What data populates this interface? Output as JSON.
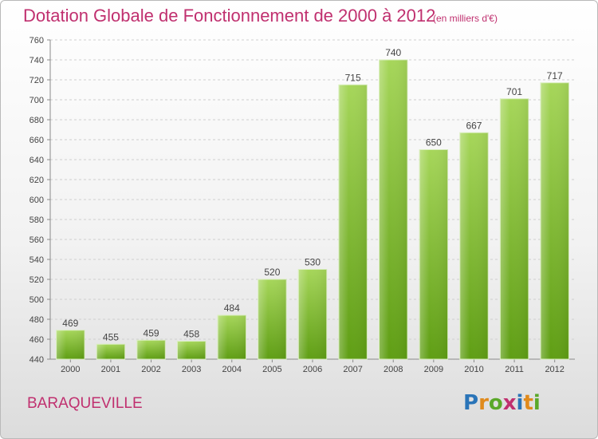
{
  "header": {
    "title": "Dotation Globale de Fonctionnement de 2000 à 2012",
    "subtitle": "(en milliers d'€)"
  },
  "footer": {
    "place": "BARAQUEVILLE",
    "logo": "Proxiti"
  },
  "colors": {
    "bar_light": "#a6d65a",
    "bar_dark": "#5f9e14",
    "title": "#c0306f"
  },
  "chart_data": {
    "type": "bar",
    "categories": [
      "2000",
      "2001",
      "2002",
      "2003",
      "2004",
      "2005",
      "2006",
      "2007",
      "2008",
      "2009",
      "2010",
      "2011",
      "2012"
    ],
    "values": [
      469,
      455,
      459,
      458,
      484,
      520,
      530,
      715,
      740,
      650,
      667,
      701,
      717
    ],
    "title": "Dotation Globale de Fonctionnement de 2000 à 2012",
    "subtitle": "(en milliers d'€)",
    "xlabel": "",
    "ylabel": "",
    "ylim": [
      440,
      760
    ],
    "ytick_step": 20,
    "grid": true,
    "data_labels": true
  }
}
